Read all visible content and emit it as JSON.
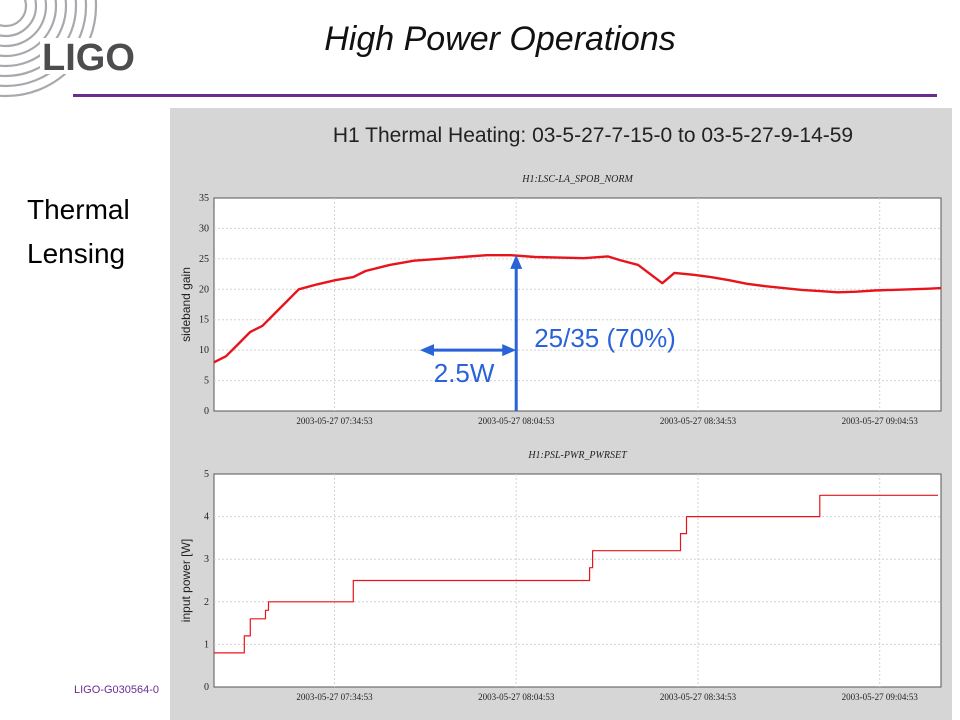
{
  "slide": {
    "title": "High Power Operations",
    "logo_text": "LIGO",
    "side_label_1": "Thermal",
    "side_label_2": "Lensing",
    "footer": "LIGO-G030564-0"
  },
  "colors": {
    "accent_rule": "#6a2c91",
    "series": "#e8141c",
    "annotation": "#2962d9",
    "panel": "#d6d6d6"
  },
  "figure_title": "H1 Thermal Heating: 03-5-27-7-15-0 to 03-5-27-9-14-59",
  "chart_data": [
    {
      "type": "line",
      "title": "H1:LSC-LA_SPOB_NORM",
      "xlabel": "",
      "ylabel": "sideband gain",
      "xlim": [
        "2003-05-27 07:15:00",
        "2003-05-27 09:15:00"
      ],
      "ylim": [
        0,
        35
      ],
      "yticks": [
        0,
        5,
        10,
        15,
        20,
        25,
        30,
        35
      ],
      "xtick_labels": [
        "2003-05-27 07:34:53",
        "2003-05-27 08:04:53",
        "2003-05-27 08:34:53",
        "2003-05-27 09:04:53"
      ],
      "grid": true,
      "series": [
        {
          "points": [
            [
              "2003-05-27 07:15:00",
              8
            ],
            [
              "2003-05-27 07:17:00",
              9
            ],
            [
              "2003-05-27 07:19:00",
              11
            ],
            [
              "2003-05-27 07:21:00",
              13
            ],
            [
              "2003-05-27 07:23:00",
              14
            ],
            [
              "2003-05-27 07:25:00",
              16
            ],
            [
              "2003-05-27 07:27:00",
              18
            ],
            [
              "2003-05-27 07:29:00",
              20
            ],
            [
              "2003-05-27 07:32:00",
              20.8
            ],
            [
              "2003-05-27 07:35:00",
              21.5
            ],
            [
              "2003-05-27 07:38:00",
              22
            ],
            [
              "2003-05-27 07:40:00",
              23
            ],
            [
              "2003-05-27 07:44:00",
              24
            ],
            [
              "2003-05-27 07:48:00",
              24.7
            ],
            [
              "2003-05-27 07:52:00",
              25
            ],
            [
              "2003-05-27 07:56:00",
              25.3
            ],
            [
              "2003-05-27 08:00:00",
              25.6
            ],
            [
              "2003-05-27 08:04:00",
              25.6
            ],
            [
              "2003-05-27 08:08:00",
              25.3
            ],
            [
              "2003-05-27 08:12:00",
              25.2
            ],
            [
              "2003-05-27 08:16:00",
              25.1
            ],
            [
              "2003-05-27 08:20:00",
              25.4
            ],
            [
              "2003-05-27 08:22:00",
              24.8
            ],
            [
              "2003-05-27 08:25:00",
              24
            ],
            [
              "2003-05-27 08:27:00",
              22.5
            ],
            [
              "2003-05-27 08:29:00",
              21
            ],
            [
              "2003-05-27 08:31:00",
              22.7
            ],
            [
              "2003-05-27 08:34:00",
              22.4
            ],
            [
              "2003-05-27 08:37:00",
              22
            ],
            [
              "2003-05-27 08:40:00",
              21.5
            ],
            [
              "2003-05-27 08:43:00",
              20.9
            ],
            [
              "2003-05-27 08:46:00",
              20.5
            ],
            [
              "2003-05-27 08:49:00",
              20.2
            ],
            [
              "2003-05-27 08:52:00",
              19.9
            ],
            [
              "2003-05-27 08:55:00",
              19.7
            ],
            [
              "2003-05-27 08:58:00",
              19.5
            ],
            [
              "2003-05-27 09:01:00",
              19.6
            ],
            [
              "2003-05-27 09:04:00",
              19.8
            ],
            [
              "2003-05-27 09:07:00",
              19.9
            ],
            [
              "2003-05-27 09:10:00",
              20
            ],
            [
              "2003-05-27 09:13:00",
              20.1
            ],
            [
              "2003-05-27 09:15:00",
              20.2
            ]
          ],
          "color": "#e8141c"
        }
      ],
      "annotations": [
        {
          "text": "25/35 (70%)",
          "x": "2003-05-27 08:04:53",
          "y": 25
        },
        {
          "text": "2.5W",
          "x_from": "2003-05-27 07:49:00",
          "x_to": "2003-05-27 08:04:53",
          "y": 10
        }
      ]
    },
    {
      "type": "line",
      "title": "H1:PSL-PWR_PWRSET",
      "xlabel": "",
      "ylabel": "input power [W]",
      "xlim": [
        "2003-05-27 07:15:00",
        "2003-05-27 09:15:00"
      ],
      "ylim": [
        0,
        5
      ],
      "yticks": [
        0,
        1,
        2,
        3,
        4,
        5
      ],
      "xtick_labels": [
        "2003-05-27 07:34:53",
        "2003-05-27 08:04:53",
        "2003-05-27 08:34:53",
        "2003-05-27 09:04:53"
      ],
      "grid": true,
      "series": [
        {
          "step": true,
          "points": [
            [
              "2003-05-27 07:15:00",
              0.8
            ],
            [
              "2003-05-27 07:19:30",
              0.8
            ],
            [
              "2003-05-27 07:20:00",
              1.2
            ],
            [
              "2003-05-27 07:21:00",
              1.6
            ],
            [
              "2003-05-27 07:23:30",
              1.8
            ],
            [
              "2003-05-27 07:24:00",
              2
            ],
            [
              "2003-05-27 07:38:00",
              2.5
            ],
            [
              "2003-05-27 07:54:00",
              2.5
            ],
            [
              "2003-05-27 08:03:00",
              2.5
            ],
            [
              "2003-05-27 08:17:00",
              2.8
            ],
            [
              "2003-05-27 08:17:30",
              3.2
            ],
            [
              "2003-05-27 08:31:30",
              3.2
            ],
            [
              "2003-05-27 08:32:00",
              3.6
            ],
            [
              "2003-05-27 08:33:00",
              4
            ],
            [
              "2003-05-27 08:55:00",
              4.5
            ],
            [
              "2003-05-27 09:14:30",
              4.5
            ]
          ],
          "color": "#e8141c"
        }
      ]
    }
  ]
}
